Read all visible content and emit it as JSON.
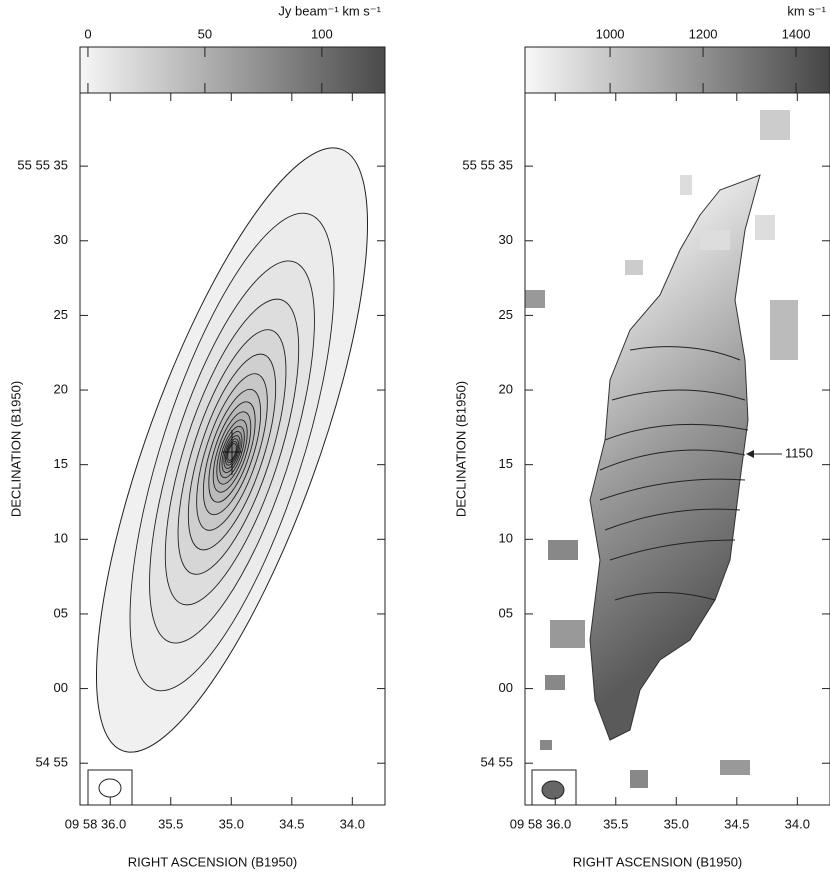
{
  "chart_data": [
    {
      "type": "contour-map",
      "colorbar": {
        "label": "Jy beam⁻¹ km s⁻¹",
        "lim": [
          -3.4,
          127
        ],
        "ticks": [
          0,
          50,
          100
        ],
        "colors": [
          "#f6f6f6",
          "#4a4a4a"
        ]
      },
      "xlabel": "RIGHT ASCENSION (B1950)",
      "ylabel": "DECLINATION (B1950)",
      "xlim": [
        36.25,
        33.73
      ],
      "xticks": [
        {
          "value": 36,
          "label": "09 58 36.0"
        },
        {
          "value": 35.5,
          "label": "35.5"
        },
        {
          "value": 35,
          "label": "35.0"
        },
        {
          "value": 34.5,
          "label": "34.5"
        },
        {
          "value": 34,
          "label": "34.0"
        }
      ],
      "ylim": [
        -7.8,
        39.9
      ],
      "yticks": [
        {
          "value": 35,
          "label": "55 55 35"
        },
        30,
        25,
        20,
        15,
        10,
        {
          "value": 5,
          "label": "05"
        },
        {
          "value": 0,
          "label": "00"
        },
        {
          "value": -5,
          "label": "54 55"
        }
      ]
    },
    {
      "type": "velocity-map",
      "colorbar": {
        "label": "km s⁻¹",
        "lim": [
          817,
          1473
        ],
        "ticks": [
          1000,
          1200,
          1400
        ],
        "colors": [
          "#f8f8f8",
          "#454545"
        ]
      },
      "xlabel": "RIGHT ASCENSION (B1950)",
      "ylabel": "DECLINATION (B1950)",
      "xlim": [
        36.25,
        33.73
      ],
      "xticks": [
        {
          "value": 36,
          "label": "09 58 36.0"
        },
        {
          "value": 35.5,
          "label": "35.5"
        },
        {
          "value": 35,
          "label": "35.0"
        },
        {
          "value": 34.5,
          "label": "34.5"
        },
        {
          "value": 34,
          "label": "34.0"
        }
      ],
      "ylim": [
        -7.8,
        39.9
      ],
      "yticks": [
        {
          "value": 35,
          "label": "55 55 35"
        },
        30,
        25,
        20,
        15,
        10,
        {
          "value": 5,
          "label": "05"
        },
        {
          "value": 0,
          "label": "00"
        },
        {
          "value": -5,
          "label": "54 55"
        }
      ],
      "annotation": "1150"
    }
  ]
}
